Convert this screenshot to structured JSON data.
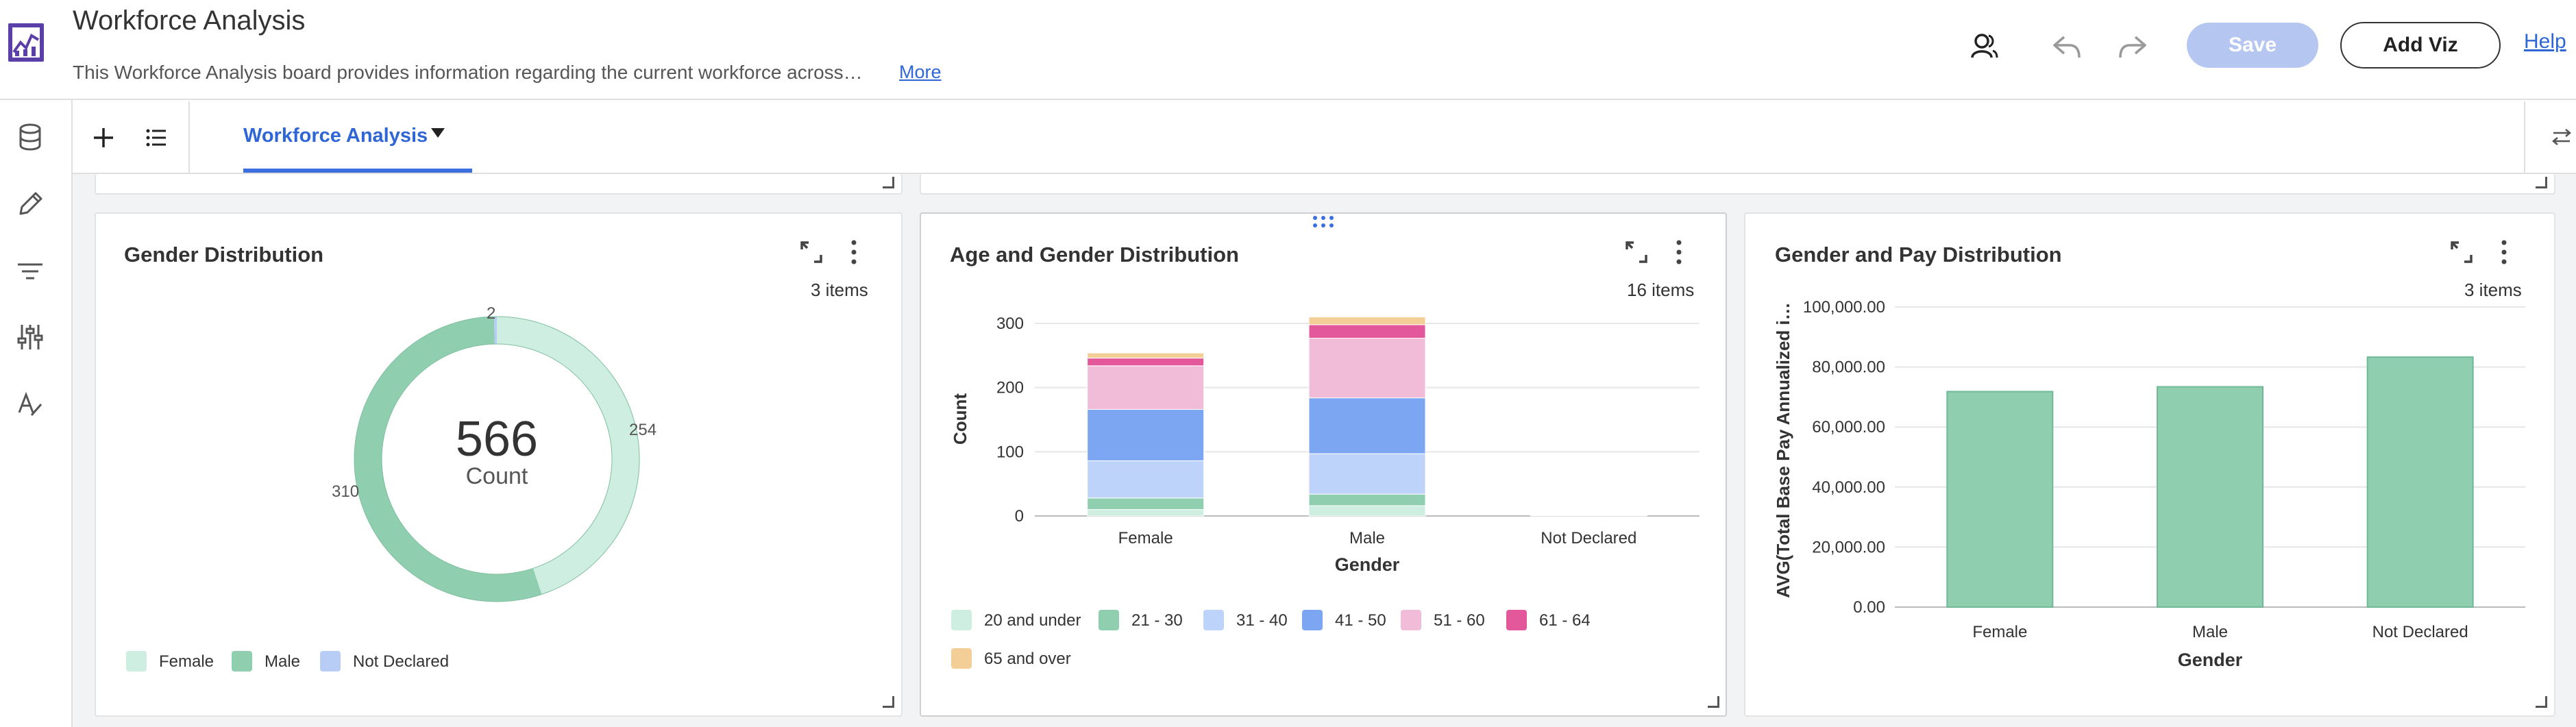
{
  "header": {
    "title": "Workforce Analysis",
    "description": "This Workforce Analysis board provides information regarding the current workforce across…",
    "more": "More",
    "save": "Save",
    "add_viz": "Add Viz",
    "help": "Help"
  },
  "left_rail": {
    "icons": [
      "database-icon",
      "pencil-icon",
      "filter-icon",
      "sliders-icon",
      "format-icon"
    ]
  },
  "tabbar": {
    "active_tab": "Workforce Analysis"
  },
  "colors": {
    "accent": "#3b6fe0",
    "save_disabled": "#b5c6f0"
  },
  "cards": {
    "gender": {
      "title": "Gender Distribution",
      "items": "3 items",
      "center_value": "566",
      "center_label": "Count",
      "labels": {
        "female": "254",
        "male": "310",
        "not_declared": "2"
      },
      "legend": [
        "Female",
        "Male",
        "Not Declared"
      ]
    },
    "age": {
      "title": "Age and Gender Distribution",
      "items": "16 items",
      "legend": [
        "20 and under",
        "21 - 30",
        "31 - 40",
        "41 - 50",
        "51 - 60",
        "61 - 64",
        "65 and over"
      ]
    },
    "pay": {
      "title": "Gender and Pay Distribution",
      "items": "3 items"
    }
  },
  "chart_data": [
    {
      "type": "pie",
      "title": "Gender Distribution",
      "categories": [
        "Female",
        "Male",
        "Not Declared"
      ],
      "values": [
        254,
        310,
        2
      ],
      "total": 566,
      "total_label": "Count",
      "colors": [
        "#cdeee0",
        "#8fcfb0",
        "#b7cdf5"
      ],
      "legend": "bottom-left"
    },
    {
      "type": "bar",
      "stacked": true,
      "title": "Age and Gender Distribution",
      "categories": [
        "Female",
        "Male",
        "Not Declared"
      ],
      "xlabel": "Gender",
      "ylabel": "Count",
      "ylim": [
        0,
        300
      ],
      "yticks": [
        0,
        100,
        200,
        300
      ],
      "series": [
        {
          "name": "20 and under",
          "color": "#cdeee0",
          "values": [
            10,
            16,
            0
          ]
        },
        {
          "name": "21 - 30",
          "color": "#8fcfb0",
          "values": [
            18,
            18,
            0
          ]
        },
        {
          "name": "31 - 40",
          "color": "#bdd3fa",
          "values": [
            58,
            63,
            0
          ]
        },
        {
          "name": "41 - 50",
          "color": "#7da6f2",
          "values": [
            80,
            87,
            1
          ]
        },
        {
          "name": "51 - 60",
          "color": "#f0bcd8",
          "values": [
            68,
            93,
            1
          ]
        },
        {
          "name": "61 - 64",
          "color": "#e2589a",
          "values": [
            12,
            21,
            0
          ]
        },
        {
          "name": "65 and over",
          "color": "#f3cf97",
          "values": [
            8,
            12,
            0
          ]
        }
      ],
      "grid": true,
      "legend": "bottom"
    },
    {
      "type": "bar",
      "title": "Gender and Pay Distribution",
      "categories": [
        "Female",
        "Male",
        "Not Declared"
      ],
      "values": [
        71800,
        73400,
        83300
      ],
      "xlabel": "Gender",
      "ylabel": "AVG(Total Base Pay Annualized i…",
      "ylim": [
        0,
        100000
      ],
      "yticks": [
        "0.00",
        "20,000.00",
        "40,000.00",
        "60,000.00",
        "80,000.00",
        "100,000.00"
      ],
      "color": "#8fcfb0",
      "grid": true
    }
  ]
}
